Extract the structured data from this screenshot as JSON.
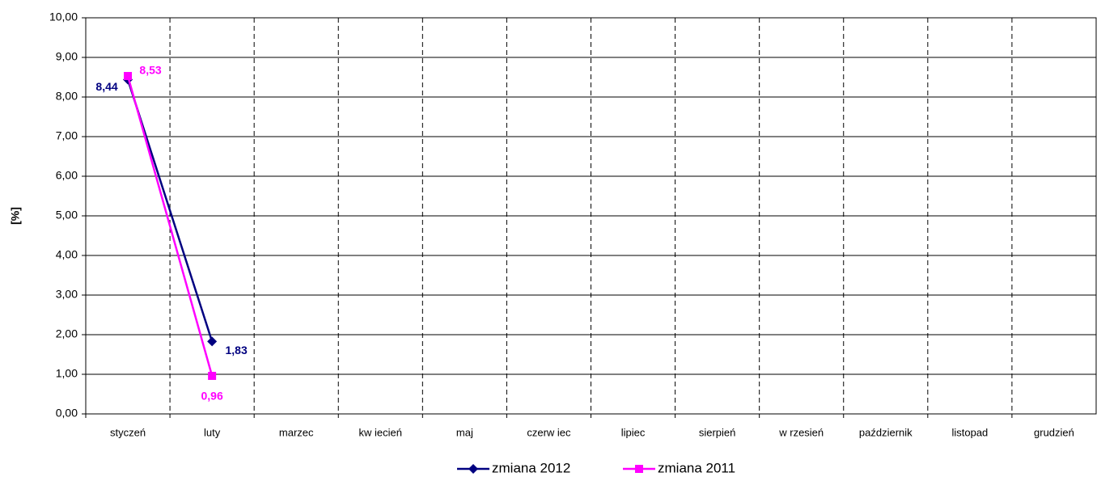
{
  "chart_data": {
    "type": "line",
    "y_label": "[%]",
    "categories": [
      "styczeń",
      "luty",
      "marzec",
      "kw iecień",
      "maj",
      "czerw iec",
      "lipiec",
      "sierpień",
      "w rzesień",
      "październik",
      "listopad",
      "grudzień"
    ],
    "series": [
      {
        "name": "zmiana 2012",
        "color": "#000080",
        "marker": "diamond",
        "values": [
          8.44,
          1.83,
          null,
          null,
          null,
          null,
          null,
          null,
          null,
          null,
          null,
          null
        ],
        "value_labels": [
          "8,44",
          "1,83",
          null,
          null,
          null,
          null,
          null,
          null,
          null,
          null,
          null,
          null
        ]
      },
      {
        "name": "zmiana 2011",
        "color": "#ff00ff",
        "marker": "square",
        "values": [
          8.53,
          0.96,
          null,
          null,
          null,
          null,
          null,
          null,
          null,
          null,
          null,
          null
        ],
        "value_labels": [
          "8,53",
          "0,96",
          null,
          null,
          null,
          null,
          null,
          null,
          null,
          null,
          null,
          null
        ]
      }
    ],
    "ylim": [
      0,
      10
    ],
    "yticks": [
      {
        "value": 0,
        "label": "0,00"
      },
      {
        "value": 1,
        "label": "1,00"
      },
      {
        "value": 2,
        "label": "2,00"
      },
      {
        "value": 3,
        "label": "3,00"
      },
      {
        "value": 4,
        "label": "4,00"
      },
      {
        "value": 5,
        "label": "5,00"
      },
      {
        "value": 6,
        "label": "6,00"
      },
      {
        "value": 7,
        "label": "7,00"
      },
      {
        "value": 8,
        "label": "8,00"
      },
      {
        "value": 9,
        "label": "9,00"
      },
      {
        "value": 10,
        "label": "10,00"
      }
    ],
    "grid": true,
    "legend": "bottom"
  }
}
